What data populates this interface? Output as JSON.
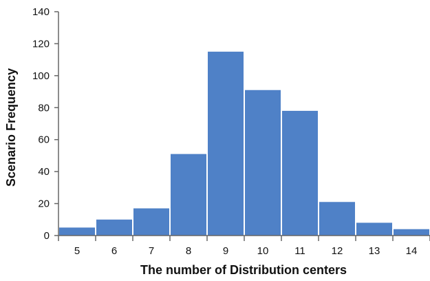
{
  "chart_data": {
    "type": "bar",
    "categories": [
      "5",
      "6",
      "7",
      "8",
      "9",
      "10",
      "11",
      "12",
      "13",
      "14"
    ],
    "values": [
      5,
      10,
      17,
      51,
      115,
      91,
      78,
      21,
      8,
      4
    ],
    "title": "",
    "xlabel": "The number of Distribution centers",
    "ylabel": "Scenario Frequency",
    "ylim": [
      0,
      140
    ],
    "yticks": [
      "0",
      "20",
      "40",
      "60",
      "80",
      "100",
      "120",
      "140"
    ],
    "grid": false,
    "bar_color": "#4f81c7",
    "axis_color": "#666666"
  }
}
